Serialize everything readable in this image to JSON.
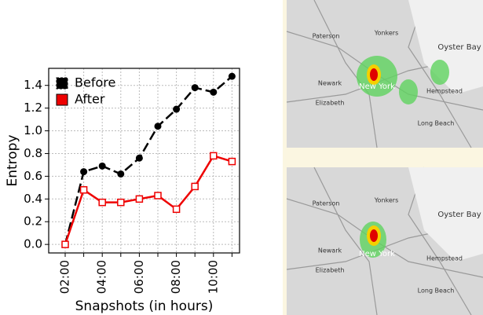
{
  "chart_data": {
    "type": "line",
    "x_label": "Snapshots (in hours)",
    "y_label": "Entropy",
    "categories": [
      "02:00",
      null,
      "04:00",
      null,
      "06:00",
      null,
      "08:00",
      null,
      "10:00",
      null
    ],
    "series": [
      {
        "name": "Before",
        "color": "#000000",
        "values": [
          0.0,
          0.64,
          0.69,
          0.62,
          0.76,
          1.04,
          1.19,
          1.38,
          1.34,
          1.48
        ]
      },
      {
        "name": "After",
        "color": "#ee0000",
        "values": [
          0.0,
          0.48,
          0.37,
          0.37,
          0.4,
          0.43,
          0.31,
          0.51,
          0.78,
          0.73
        ]
      }
    ],
    "ylim": [
      -0.075,
      1.55
    ],
    "yticks": [
      {
        "value": 0,
        "label": "0.0"
      },
      0.2,
      0.4,
      0.6,
      0.8,
      {
        "value": 1,
        "label": "1.0"
      },
      1.2,
      1.4
    ],
    "grid": true,
    "legend": "upper left"
  },
  "map_labels": [
    "Paterson",
    "Yonkers",
    "Newark",
    "New York",
    "Elizabeth",
    "Oyster Bay",
    "Hempstead",
    "Long Beach"
  ]
}
